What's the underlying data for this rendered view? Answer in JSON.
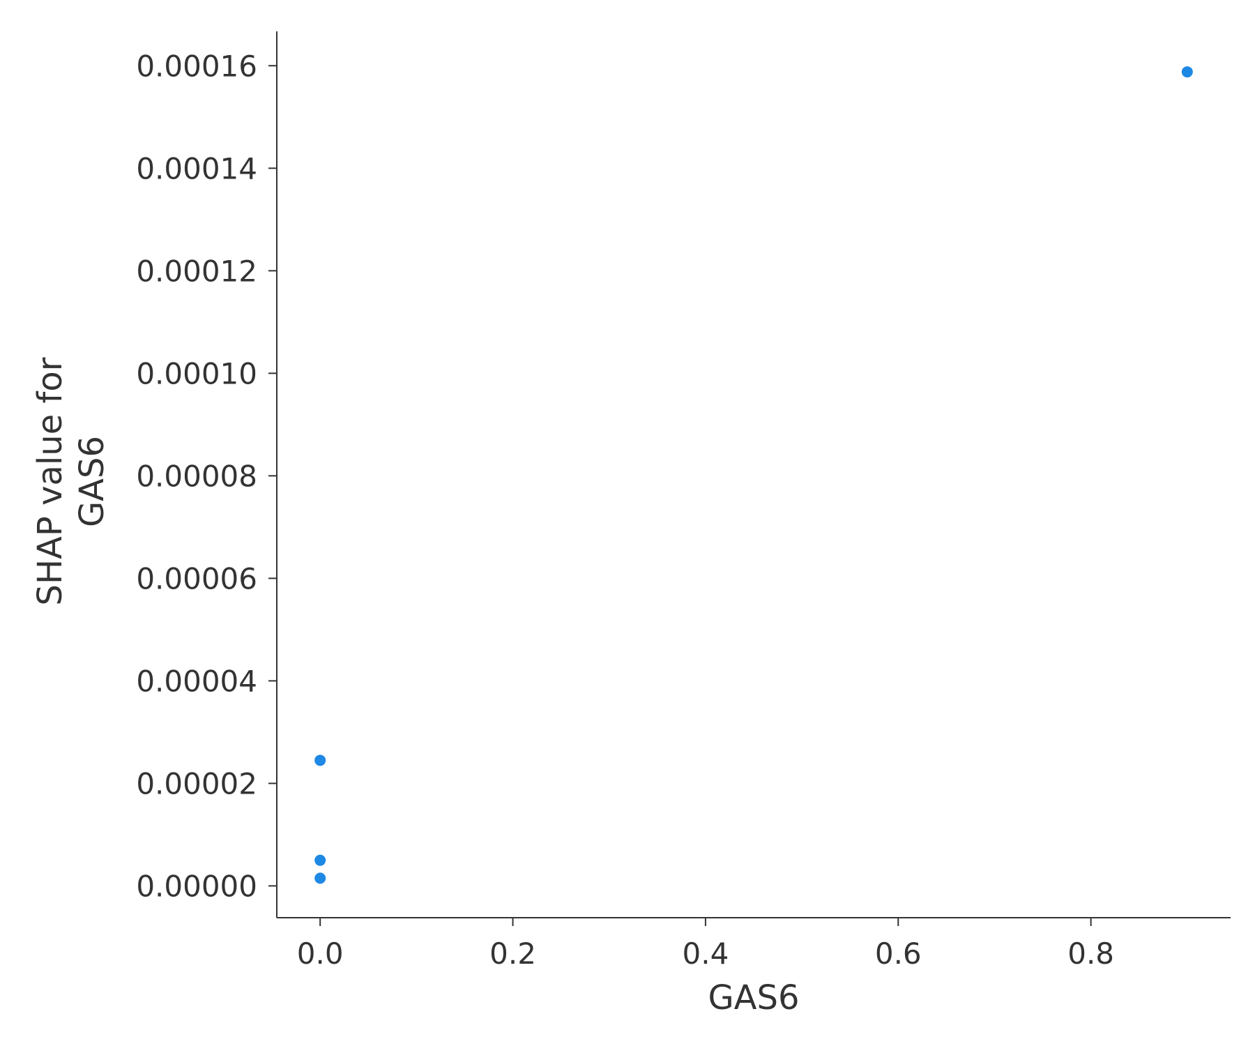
{
  "chart_data": {
    "type": "scatter",
    "title": "",
    "xlabel": "GAS6",
    "ylabel_lines": [
      "SHAP value for",
      "GAS6"
    ],
    "xlim": [
      -0.045,
      0.945
    ],
    "ylim": [
      -6.2e-06,
      0.0001667
    ],
    "xticks": [
      0.0,
      0.2,
      0.4,
      0.6,
      0.8
    ],
    "xtick_labels": [
      "0.0",
      "0.2",
      "0.4",
      "0.6",
      "0.8"
    ],
    "yticks": [
      0.0,
      2e-05,
      4e-05,
      6e-05,
      8e-05,
      0.0001,
      0.00012,
      0.00014,
      0.00016
    ],
    "ytick_labels": [
      "0.00000",
      "0.00002",
      "0.00004",
      "0.00006",
      "0.00008",
      "0.00010",
      "0.00012",
      "0.00014",
      "0.00016"
    ],
    "grid": false,
    "legend": "none",
    "point_color": "#1E88E5",
    "axis_color": "#333333",
    "points": [
      {
        "x": 0.0,
        "y": 2.45e-05
      },
      {
        "x": 0.0,
        "y": 5e-06
      },
      {
        "x": 0.0,
        "y": 1.5e-06
      },
      {
        "x": 0.9,
        "y": 0.0001588
      }
    ]
  }
}
